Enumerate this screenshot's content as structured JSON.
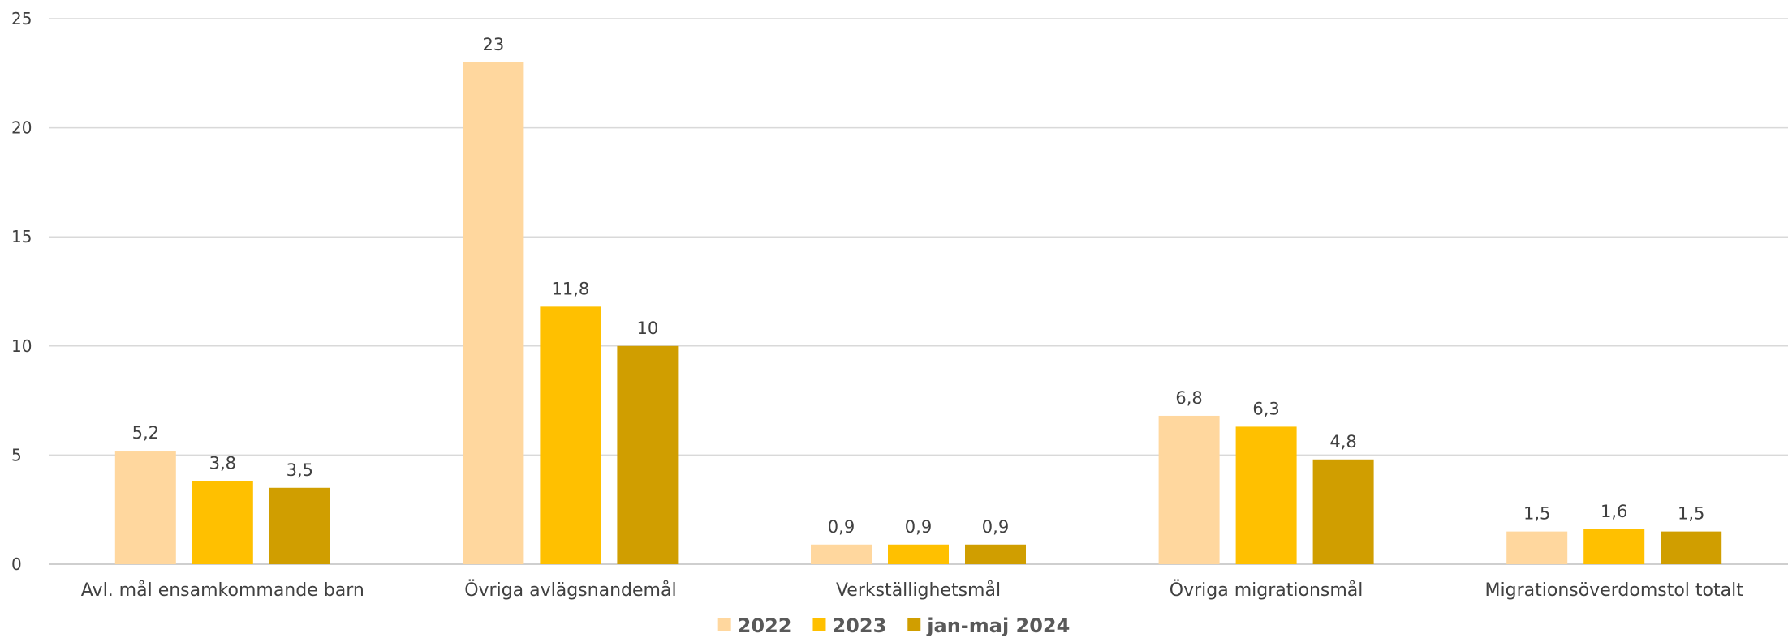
{
  "chart_data": {
    "type": "bar",
    "categories": [
      "Avl. mål ensamkommande barn",
      "Övriga avlägsnandemål",
      "Verkställighetsmål",
      "Övriga migrationsmål",
      "Migrationsöverdomstol totalt"
    ],
    "series": [
      {
        "name": "2022",
        "color": "#FFD79E",
        "values": [
          5.2,
          23,
          0.9,
          6.8,
          1.5
        ],
        "labels": [
          "5,2",
          "23",
          "0,9",
          "6,8",
          "1,5"
        ]
      },
      {
        "name": "2023",
        "color": "#FFC000",
        "values": [
          3.8,
          11.8,
          0.9,
          6.3,
          1.6
        ],
        "labels": [
          "3,8",
          "11,8",
          "0,9",
          "6,3",
          "1,6"
        ]
      },
      {
        "name": "jan-maj 2024",
        "color": "#D09E00",
        "values": [
          3.5,
          10,
          0.9,
          4.8,
          1.5
        ],
        "labels": [
          "3,5",
          "10",
          "0,9",
          "4,8",
          "1,5"
        ]
      }
    ],
    "yticks": [
      "0",
      "5",
      "10",
      "15",
      "20",
      "25"
    ],
    "ylim": [
      0,
      25
    ],
    "grid": true,
    "legend_position": "bottom",
    "title": "",
    "xlabel": "",
    "ylabel": ""
  }
}
